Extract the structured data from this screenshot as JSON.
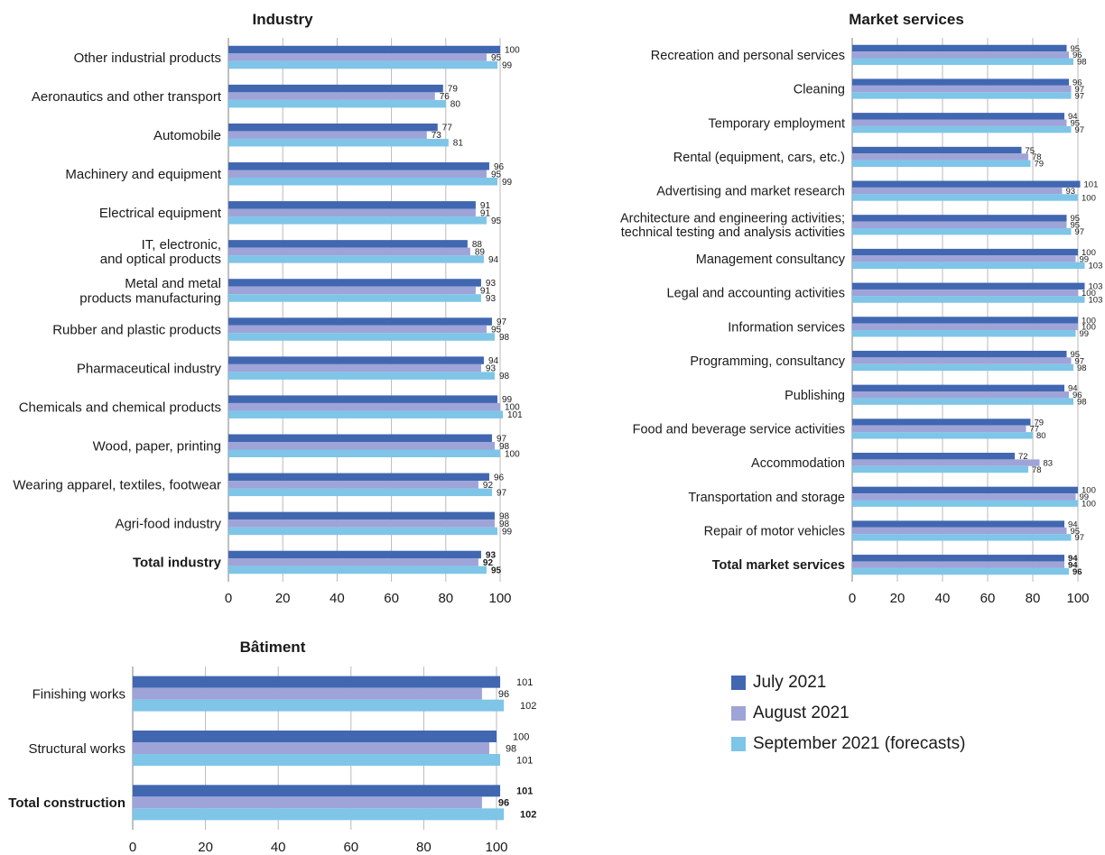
{
  "colors": {
    "july": "#4167b1",
    "august": "#9ea4d8",
    "september": "#7ec5e8",
    "grid": "#b9b9b9",
    "axis": "#7f7f7f"
  },
  "legend": {
    "items": [
      {
        "label": "July 2021",
        "color": "#4167b1"
      },
      {
        "label": "August 2021",
        "color": "#9ea4d8"
      },
      {
        "label": "September 2021 (forecasts)",
        "color": "#7ec5e8"
      }
    ]
  },
  "chart_data": [
    {
      "type": "bar",
      "orientation": "horizontal",
      "title": "Industry",
      "xlim": [
        0,
        100
      ],
      "xticks": [
        "0",
        "20",
        "40",
        "60",
        "80",
        "100"
      ],
      "grid": true,
      "categories": [
        {
          "label": [
            "Other industrial products"
          ],
          "bold": false
        },
        {
          "label": [
            "Aeronautics and other transport"
          ],
          "bold": false
        },
        {
          "label": [
            "Automobile"
          ],
          "bold": false
        },
        {
          "label": [
            "Machinery and equipment"
          ],
          "bold": false
        },
        {
          "label": [
            "Electrical equipment"
          ],
          "bold": false
        },
        {
          "label": [
            "IT, electronic,",
            "and optical products"
          ],
          "bold": false
        },
        {
          "label": [
            "Metal and metal",
            "products manufacturing"
          ],
          "bold": false
        },
        {
          "label": [
            "Rubber and plastic products"
          ],
          "bold": false
        },
        {
          "label": [
            "Pharmaceutical industry"
          ],
          "bold": false
        },
        {
          "label": [
            "Chemicals and chemical products"
          ],
          "bold": false
        },
        {
          "label": [
            "Wood, paper, printing"
          ],
          "bold": false
        },
        {
          "label": [
            "Wearing apparel, textiles, footwear"
          ],
          "bold": false
        },
        {
          "label": [
            "Agri-food industry"
          ],
          "bold": false
        },
        {
          "label": [
            "Total industry"
          ],
          "bold": true
        }
      ],
      "series": [
        {
          "name": "July 2021",
          "values": [
            100,
            79,
            77,
            96,
            91,
            88,
            93,
            97,
            94,
            99,
            97,
            96,
            98,
            93
          ]
        },
        {
          "name": "August 2021",
          "values": [
            95,
            76,
            73,
            95,
            91,
            89,
            91,
            95,
            93,
            100,
            98,
            92,
            98,
            92
          ]
        },
        {
          "name": "September 2021 (forecasts)",
          "values": [
            99,
            80,
            81,
            99,
            95,
            94,
            93,
            98,
            98,
            101,
            100,
            97,
            99,
            95
          ]
        }
      ]
    },
    {
      "type": "bar",
      "orientation": "horizontal",
      "title": "Market services",
      "xlim": [
        0,
        100
      ],
      "xticks": [
        "0",
        "20",
        "40",
        "60",
        "80",
        "100"
      ],
      "grid": true,
      "categories": [
        {
          "label": [
            "Recreation and personal services"
          ],
          "bold": false
        },
        {
          "label": [
            "Cleaning"
          ],
          "bold": false
        },
        {
          "label": [
            "Temporary employment"
          ],
          "bold": false
        },
        {
          "label": [
            "Rental (equipment, cars, etc.)"
          ],
          "bold": false
        },
        {
          "label": [
            "Advertising and market research"
          ],
          "bold": false
        },
        {
          "label": [
            "Architecture and engineering activities;",
            "technical testing and analysis activities"
          ],
          "bold": false
        },
        {
          "label": [
            "Management consultancy"
          ],
          "bold": false
        },
        {
          "label": [
            "Legal and accounting activities"
          ],
          "bold": false
        },
        {
          "label": [
            "Information services"
          ],
          "bold": false
        },
        {
          "label": [
            "Programming, consultancy"
          ],
          "bold": false
        },
        {
          "label": [
            "Publishing"
          ],
          "bold": false
        },
        {
          "label": [
            "Food and beverage service activities"
          ],
          "bold": false
        },
        {
          "label": [
            "Accommodation"
          ],
          "bold": false
        },
        {
          "label": [
            "Transportation and storage"
          ],
          "bold": false
        },
        {
          "label": [
            "Repair of motor vehicles"
          ],
          "bold": false
        },
        {
          "label": [
            "Total market services"
          ],
          "bold": true
        }
      ],
      "series": [
        {
          "name": "July 2021",
          "values": [
            95,
            96,
            94,
            75,
            101,
            95,
            100,
            103,
            100,
            95,
            94,
            79,
            72,
            100,
            94,
            94
          ]
        },
        {
          "name": "August 2021",
          "values": [
            96,
            97,
            95,
            78,
            93,
            95,
            99,
            100,
            100,
            97,
            96,
            77,
            83,
            99,
            95,
            94
          ]
        },
        {
          "name": "September 2021 (forecasts)",
          "values": [
            98,
            97,
            97,
            79,
            100,
            97,
            103,
            103,
            99,
            98,
            98,
            80,
            78,
            100,
            97,
            96
          ]
        }
      ]
    },
    {
      "type": "bar",
      "orientation": "horizontal",
      "title": "Bâtiment",
      "xlim": [
        0,
        100
      ],
      "xticks": [
        "0",
        "20",
        "40",
        "60",
        "80",
        "100"
      ],
      "grid": true,
      "categories": [
        {
          "label": [
            "Finishing works"
          ],
          "bold": false
        },
        {
          "label": [
            "Structural works"
          ],
          "bold": false
        },
        {
          "label": [
            "Total construction"
          ],
          "bold": true
        }
      ],
      "series": [
        {
          "name": "July 2021",
          "values": [
            101,
            100,
            101
          ]
        },
        {
          "name": "August 2021",
          "values": [
            96,
            98,
            96
          ]
        },
        {
          "name": "September 2021 (forecasts)",
          "values": [
            102,
            101,
            102
          ]
        }
      ]
    }
  ]
}
